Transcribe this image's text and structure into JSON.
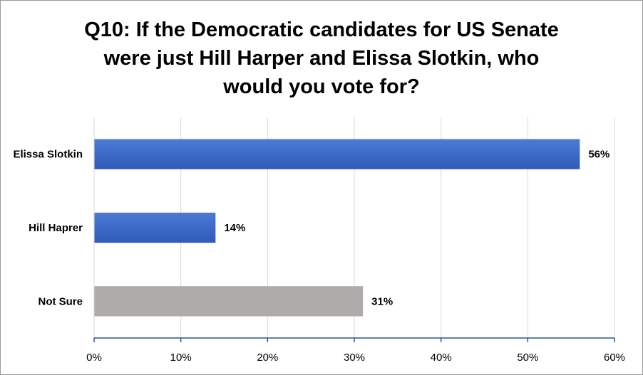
{
  "chart_data": {
    "type": "bar",
    "orientation": "horizontal",
    "title_lines": [
      "Q10: If the Democratic candidates for US Senate",
      "were just Hill Harper and Elissa Slotkin, who",
      "would you vote for?"
    ],
    "categories": [
      "Elissa Slotkin",
      "Hill Haprer",
      "Not Sure"
    ],
    "values": [
      56,
      14,
      31
    ],
    "data_labels": [
      "56%",
      "14%",
      "31%"
    ],
    "bar_colors": [
      "#3a66c4",
      "#3a66c4",
      "#aeabaa"
    ],
    "xlim": [
      0,
      60
    ],
    "x_ticks": [
      0,
      10,
      20,
      30,
      40,
      50,
      60
    ],
    "x_tick_labels": [
      "0%",
      "10%",
      "20%",
      "30%",
      "40%",
      "50%",
      "60%"
    ],
    "grid": true,
    "legend": "none"
  }
}
